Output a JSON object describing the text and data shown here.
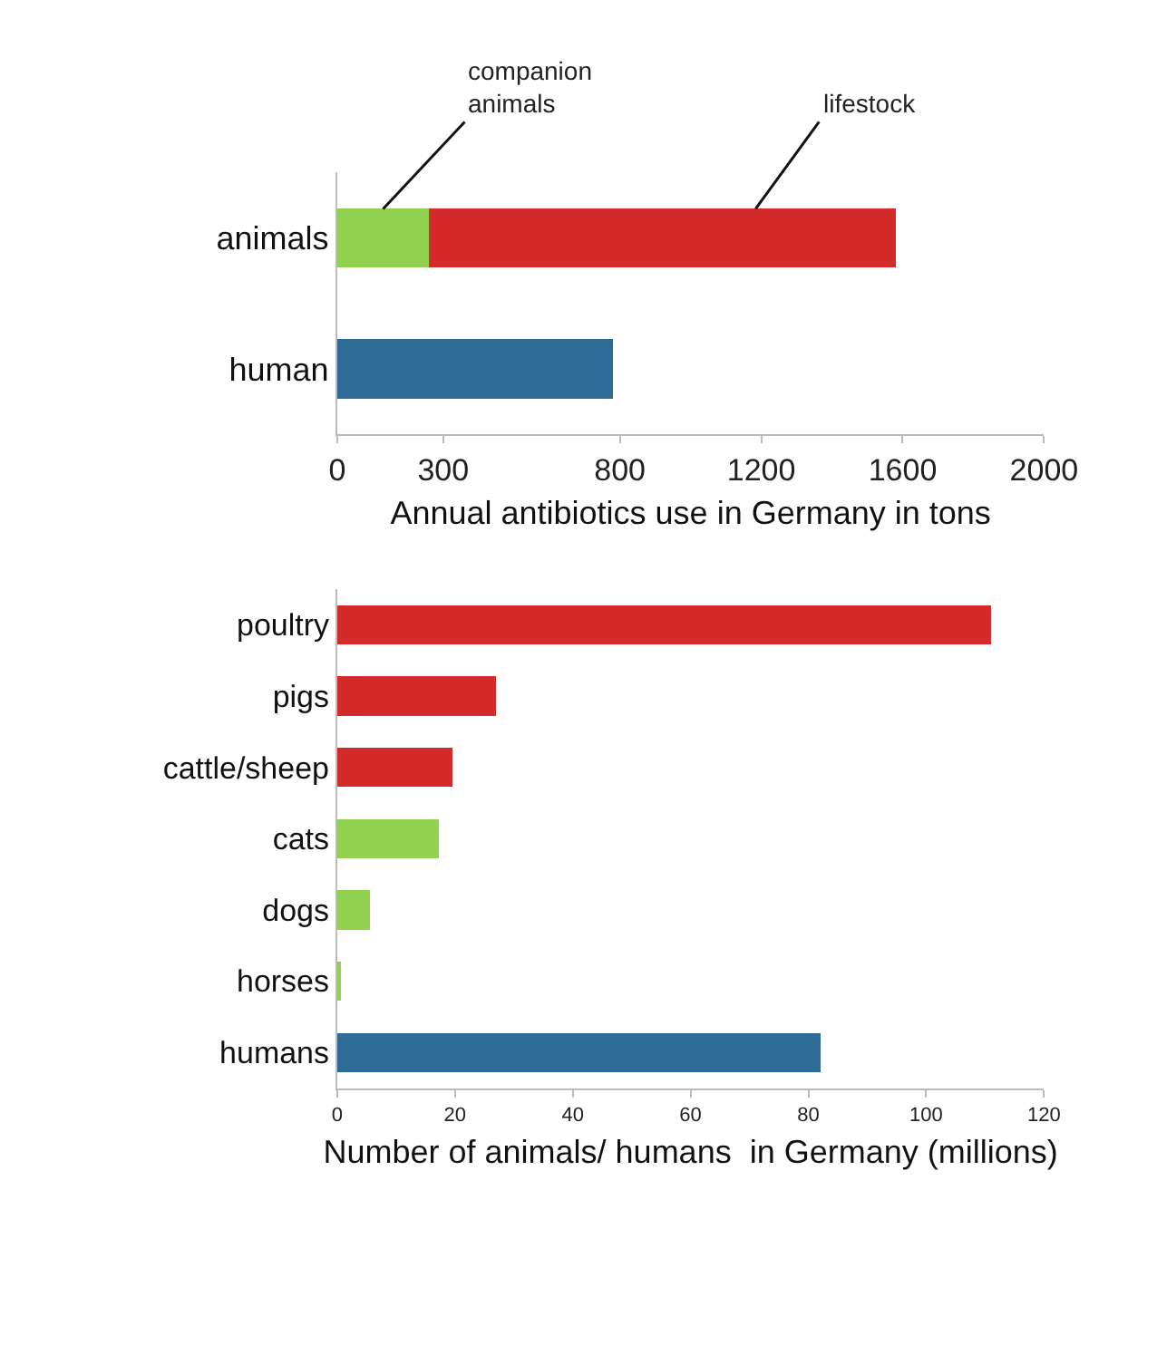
{
  "chart_data": [
    {
      "type": "bar",
      "orientation": "horizontal",
      "stacked": true,
      "categories": [
        "animals",
        "human"
      ],
      "xlabel": "Annual antibiotics use in Germany in tons",
      "xlim": [
        0,
        2000
      ],
      "xticks": [
        0,
        300,
        800,
        1200,
        1600,
        2000
      ],
      "grid": false,
      "legend": false,
      "series": [
        {
          "name": "companion animals",
          "color": "#92d050",
          "values": [
            260,
            null
          ]
        },
        {
          "name": "lifestock",
          "color": "#d42a2a",
          "values": [
            1320,
            null
          ]
        },
        {
          "color": "#2e6b96",
          "values": [
            null,
            780
          ]
        }
      ]
    },
    {
      "type": "bar",
      "orientation": "horizontal",
      "categories": [
        "poultry",
        "pigs",
        "cattle/sheep",
        "cats",
        "dogs",
        "horses",
        "humans"
      ],
      "xlabel": "Number of animals/ humans  in Germany (millions)",
      "xlim": [
        0,
        120
      ],
      "xticks": [
        0,
        20,
        40,
        60,
        80,
        100,
        120
      ],
      "grid": false,
      "legend": false,
      "values": [
        111,
        27,
        19.5,
        17.3,
        5.5,
        0.6,
        82
      ],
      "colors": [
        "#d42a2a",
        "#d42a2a",
        "#d42a2a",
        "#92d050",
        "#92d050",
        "#92d050",
        "#2e6b96"
      ]
    }
  ]
}
